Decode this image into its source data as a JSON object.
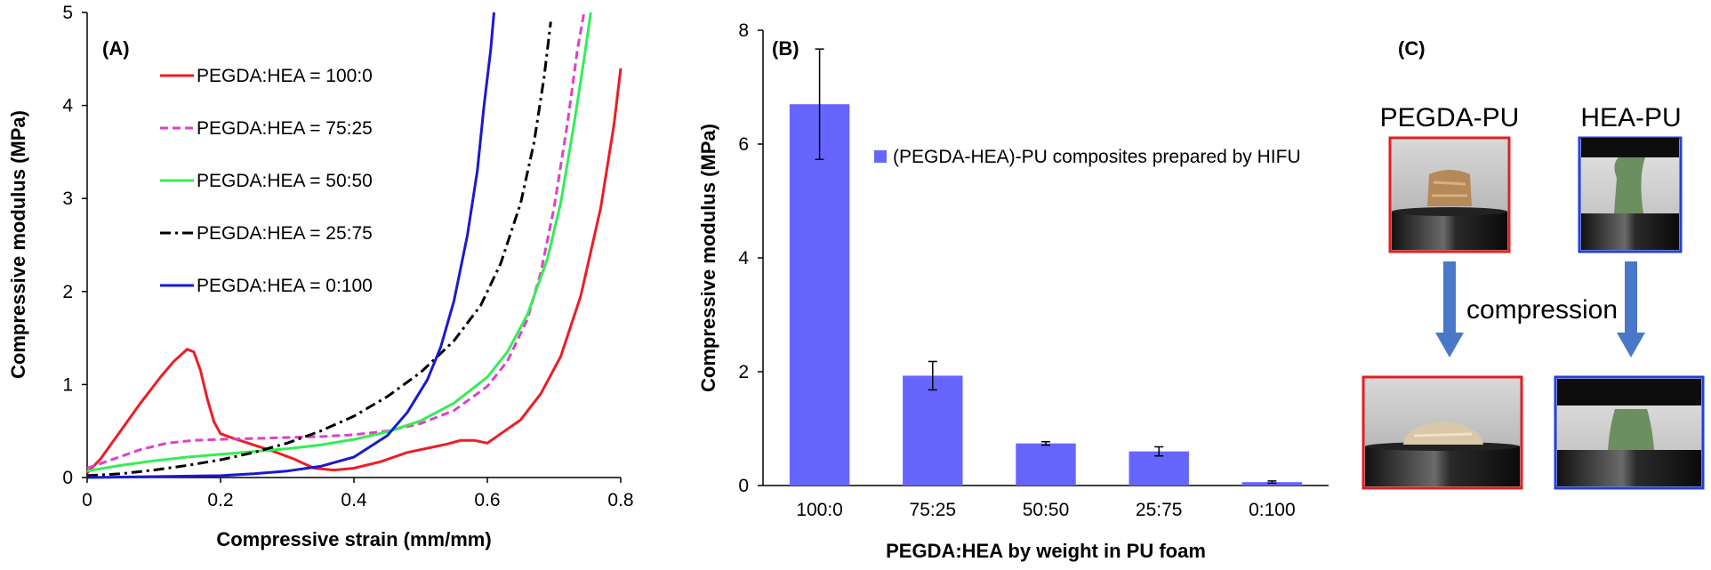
{
  "chart_data": [
    {
      "panel_label": "(A)",
      "type": "line",
      "xlabel": "Compressive strain (mm/mm)",
      "ylabel": "Compressive modulus (MPa)",
      "xlim": [
        0,
        0.8
      ],
      "ylim": [
        0,
        5
      ],
      "xticks": [
        0,
        0.2,
        0.4,
        0.6,
        0.8
      ],
      "xtick_labels": [
        "0",
        "0.2",
        "0.4",
        "0.6",
        "0.8"
      ],
      "yticks": [
        0,
        1,
        2,
        3,
        4,
        5
      ],
      "ytick_labels": [
        "0",
        "1",
        "2",
        "3",
        "4",
        "5"
      ],
      "grid": false,
      "legend_position": "top-left",
      "series": [
        {
          "name": "PEGDA:HEA = 100:0",
          "color": "#ee1c24",
          "style": "solid",
          "points": [
            [
              0,
              0.05
            ],
            [
              0.02,
              0.2
            ],
            [
              0.05,
              0.5
            ],
            [
              0.08,
              0.8
            ],
            [
              0.11,
              1.08
            ],
            [
              0.13,
              1.25
            ],
            [
              0.15,
              1.38
            ],
            [
              0.16,
              1.35
            ],
            [
              0.17,
              1.15
            ],
            [
              0.18,
              0.85
            ],
            [
              0.19,
              0.6
            ],
            [
              0.2,
              0.47
            ],
            [
              0.22,
              0.42
            ],
            [
              0.25,
              0.35
            ],
            [
              0.28,
              0.28
            ],
            [
              0.31,
              0.2
            ],
            [
              0.34,
              0.1
            ],
            [
              0.37,
              0.08
            ],
            [
              0.4,
              0.1
            ],
            [
              0.44,
              0.17
            ],
            [
              0.48,
              0.27
            ],
            [
              0.52,
              0.33
            ],
            [
              0.54,
              0.36
            ],
            [
              0.56,
              0.4
            ],
            [
              0.58,
              0.4
            ],
            [
              0.6,
              0.37
            ],
            [
              0.62,
              0.47
            ],
            [
              0.65,
              0.62
            ],
            [
              0.68,
              0.9
            ],
            [
              0.71,
              1.3
            ],
            [
              0.74,
              1.95
            ],
            [
              0.77,
              2.9
            ],
            [
              0.79,
              3.8
            ],
            [
              0.8,
              4.4
            ]
          ]
        },
        {
          "name": "PEGDA:HEA = 75:25",
          "color": "#e040c8",
          "style": "dashed",
          "points": [
            [
              0,
              0.1
            ],
            [
              0.04,
              0.2
            ],
            [
              0.08,
              0.3
            ],
            [
              0.12,
              0.37
            ],
            [
              0.16,
              0.4
            ],
            [
              0.2,
              0.41
            ],
            [
              0.25,
              0.42
            ],
            [
              0.3,
              0.43
            ],
            [
              0.35,
              0.44
            ],
            [
              0.4,
              0.46
            ],
            [
              0.45,
              0.5
            ],
            [
              0.5,
              0.58
            ],
            [
              0.55,
              0.72
            ],
            [
              0.6,
              0.98
            ],
            [
              0.63,
              1.25
            ],
            [
              0.66,
              1.7
            ],
            [
              0.68,
              2.2
            ],
            [
              0.7,
              2.9
            ],
            [
              0.72,
              3.8
            ],
            [
              0.735,
              4.6
            ],
            [
              0.745,
              5.0
            ]
          ]
        },
        {
          "name": "PEGDA:HEA = 50:50",
          "color": "#33ee55",
          "style": "solid",
          "points": [
            [
              0,
              0.07
            ],
            [
              0.05,
              0.13
            ],
            [
              0.1,
              0.18
            ],
            [
              0.15,
              0.22
            ],
            [
              0.2,
              0.25
            ],
            [
              0.25,
              0.28
            ],
            [
              0.3,
              0.31
            ],
            [
              0.35,
              0.35
            ],
            [
              0.4,
              0.41
            ],
            [
              0.45,
              0.49
            ],
            [
              0.5,
              0.61
            ],
            [
              0.55,
              0.8
            ],
            [
              0.6,
              1.08
            ],
            [
              0.63,
              1.35
            ],
            [
              0.66,
              1.75
            ],
            [
              0.69,
              2.35
            ],
            [
              0.71,
              2.95
            ],
            [
              0.73,
              3.8
            ],
            [
              0.745,
              4.5
            ],
            [
              0.755,
              5.0
            ]
          ]
        },
        {
          "name": "PEGDA:HEA = 25:75",
          "color": "#000000",
          "style": "dashdot",
          "points": [
            [
              0,
              0.02
            ],
            [
              0.05,
              0.04
            ],
            [
              0.1,
              0.08
            ],
            [
              0.15,
              0.13
            ],
            [
              0.2,
              0.19
            ],
            [
              0.25,
              0.27
            ],
            [
              0.3,
              0.37
            ],
            [
              0.35,
              0.5
            ],
            [
              0.4,
              0.66
            ],
            [
              0.45,
              0.87
            ],
            [
              0.5,
              1.13
            ],
            [
              0.55,
              1.47
            ],
            [
              0.59,
              1.85
            ],
            [
              0.62,
              2.3
            ],
            [
              0.65,
              2.95
            ],
            [
              0.67,
              3.6
            ],
            [
              0.685,
              4.3
            ],
            [
              0.695,
              4.9
            ]
          ]
        },
        {
          "name": "PEGDA:HEA = 0:100",
          "color": "#1a1acc",
          "style": "solid",
          "points": [
            [
              0,
              0.0
            ],
            [
              0.1,
              0.01
            ],
            [
              0.2,
              0.02
            ],
            [
              0.25,
              0.04
            ],
            [
              0.3,
              0.07
            ],
            [
              0.35,
              0.12
            ],
            [
              0.4,
              0.22
            ],
            [
              0.45,
              0.45
            ],
            [
              0.48,
              0.7
            ],
            [
              0.51,
              1.05
            ],
            [
              0.53,
              1.4
            ],
            [
              0.55,
              1.9
            ],
            [
              0.57,
              2.6
            ],
            [
              0.585,
              3.3
            ],
            [
              0.595,
              4.0
            ],
            [
              0.605,
              4.6
            ],
            [
              0.61,
              5.0
            ]
          ]
        }
      ]
    },
    {
      "panel_label": "(B)",
      "type": "bar",
      "xlabel": "PEGDA:HEA by weight in PU foam",
      "ylabel": "Compressive modulus (MPa)",
      "ylim": [
        0,
        8
      ],
      "yticks": [
        0,
        2,
        4,
        6,
        8
      ],
      "ytick_labels": [
        "0",
        "2",
        "4",
        "6",
        "8"
      ],
      "grid": false,
      "legend_position": "top-right",
      "categories": [
        "100:0",
        "75:25",
        "50:50",
        "25:75",
        "0:100"
      ],
      "series": [
        {
          "name": "(PEGDA-HEA)-PU composites prepared by HIFU",
          "color": "#6666ff",
          "values": [
            6.7,
            1.93,
            0.74,
            0.6,
            0.06
          ],
          "errors": [
            0.97,
            0.25,
            0.03,
            0.08,
            0.02
          ]
        }
      ]
    }
  ],
  "photo_panel": {
    "panel_label": "(C)",
    "sample_left": "PEGDA-PU",
    "sample_right": "HEA-PU",
    "arrow_label": "compression",
    "border_left_color": "#e02020",
    "border_right_color": "#2040dd",
    "arrow_color": "#4a78c9"
  }
}
